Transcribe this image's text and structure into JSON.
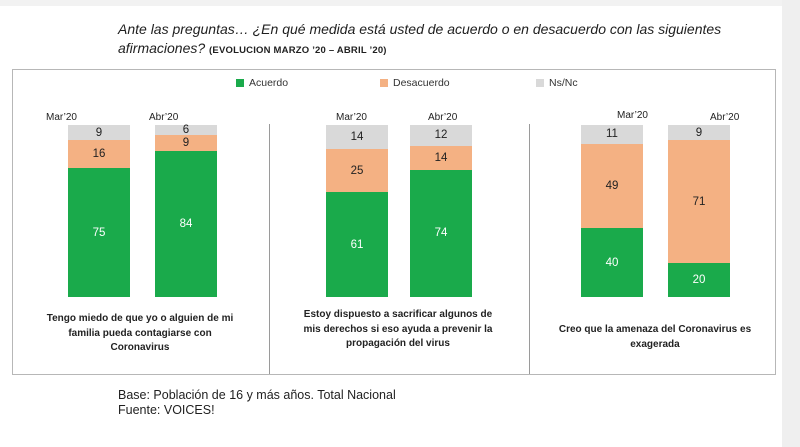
{
  "header": {
    "question": "Ante las preguntas… ¿En qué medida está usted de acuerdo o en desacuerdo con las siguientes afirmaciones?",
    "subtitle": "(EVOLUCION MARZO ’20 – ABRIL ’20)"
  },
  "colors": {
    "acuerdo": "#1aaa4b",
    "desacuerdo": "#f4b183",
    "nsnc": "#d9d9d9"
  },
  "chart_data": {
    "type": "bar",
    "stacked": true,
    "ylim": [
      0,
      100
    ],
    "legend": [
      "Acuerdo",
      "Desacuerdo",
      "Ns/Nc"
    ],
    "legend_position": "top",
    "periods": [
      "Mar’20",
      "Abr’20"
    ],
    "panels": [
      {
        "caption": "Tengo miedo de que yo o alguien de mi familia pueda contagiarse con Coronavirus",
        "bars": [
          {
            "period": "Mar’20",
            "acuerdo": 75,
            "desacuerdo": 16,
            "nsnc": 9
          },
          {
            "period": "Abr’20",
            "acuerdo": 84,
            "desacuerdo": 9,
            "nsnc": 6
          }
        ]
      },
      {
        "caption": "Estoy dispuesto a sacrificar algunos de mis derechos si eso ayuda a prevenir la propagación del virus",
        "bars": [
          {
            "period": "Mar’20",
            "acuerdo": 61,
            "desacuerdo": 25,
            "nsnc": 14
          },
          {
            "period": "Abr’20",
            "acuerdo": 74,
            "desacuerdo": 14,
            "nsnc": 12
          }
        ]
      },
      {
        "caption": "Creo que la amenaza del Coronavirus es exagerada",
        "bars": [
          {
            "period": "Mar’20",
            "acuerdo": 40,
            "desacuerdo": 49,
            "nsnc": 11
          },
          {
            "period": "Abr’20",
            "acuerdo": 20,
            "desacuerdo": 71,
            "nsnc": 9
          }
        ]
      }
    ]
  },
  "footer": {
    "base": "Base: Población de 16 y más años. Total Nacional",
    "source": "Fuente: VOICES!"
  }
}
